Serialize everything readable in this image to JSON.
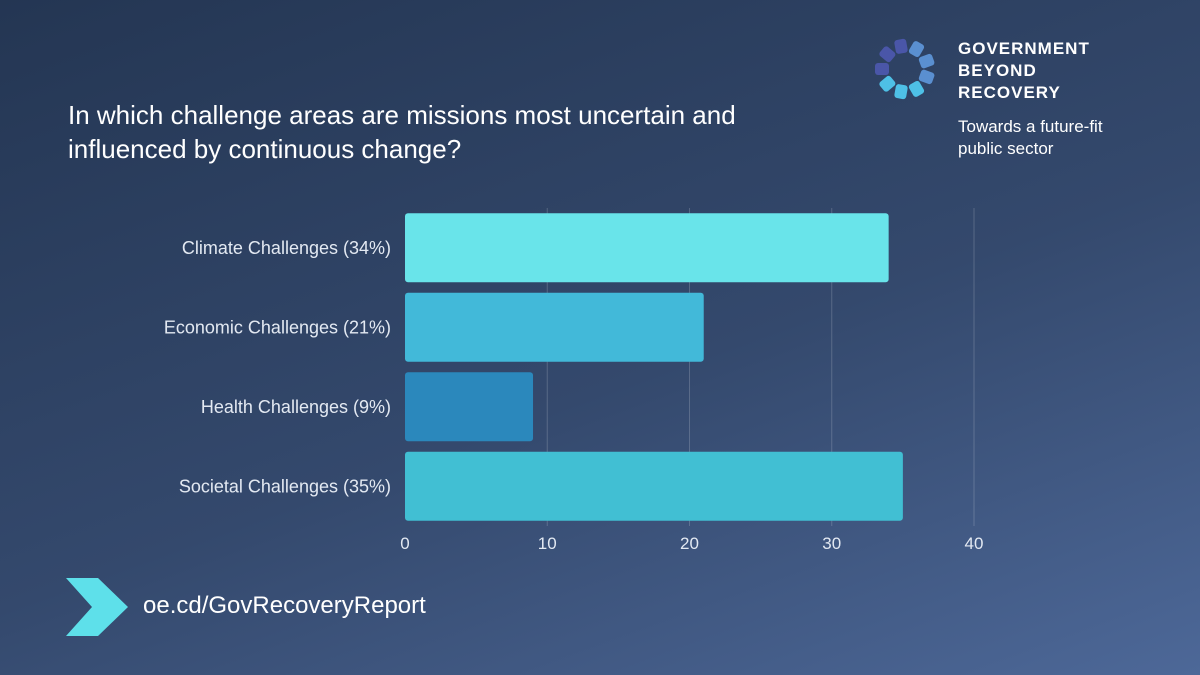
{
  "header": {
    "title": "In which challenge areas are missions most uncertain and influenced by continuous change?"
  },
  "brand": {
    "name_lines": [
      "GOVERNMENT",
      "BEYOND",
      "RECOVERY"
    ],
    "tagline_lines": [
      "Towards a future-fit",
      "public sector"
    ],
    "logo_icon": "segmented-ring-logo",
    "logo_colors": [
      "#4a56a8",
      "#5a8fd0",
      "#4ec0e6"
    ]
  },
  "chart_data": {
    "type": "bar",
    "orientation": "horizontal",
    "categories": [
      "Climate Challenges (34%)",
      "Economic Challenges (21%)",
      "Health Challenges (9%)",
      "Societal Challenges (35%)"
    ],
    "values": [
      34,
      21,
      9,
      35
    ],
    "bar_colors": [
      "#69e4ea",
      "#42b9d9",
      "#2b88bc",
      "#41bfd3"
    ],
    "xlim": [
      0,
      40
    ],
    "xticks": [
      "0",
      "10",
      "20",
      "30",
      "40"
    ],
    "grid": true,
    "title": "",
    "xlabel": "",
    "ylabel": ""
  },
  "footer": {
    "arrow_icon": "chevron-arrow-icon",
    "arrow_color": "#5ee0ea",
    "link": "oe.cd/GovRecoveryReport"
  }
}
